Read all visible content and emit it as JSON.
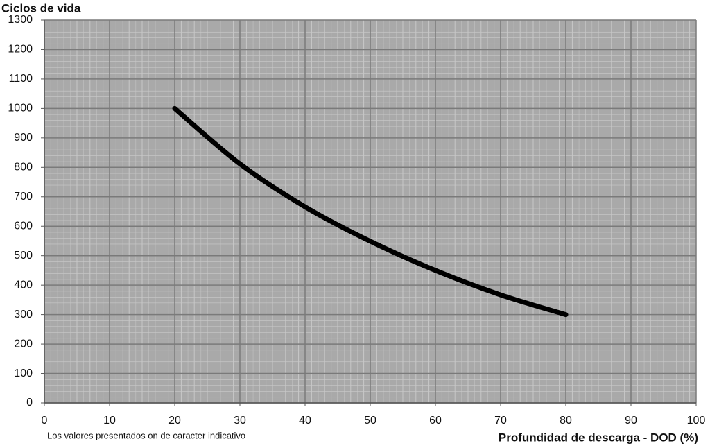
{
  "chart_data": {
    "type": "line",
    "y_label": "Ciclos de vida",
    "x_label": "Profundidad de descarga - DOD (%)",
    "annotation": "Los valores presentados on de caracter indicativo",
    "x": [
      20,
      30,
      40,
      50,
      60,
      70,
      80
    ],
    "series": [
      {
        "color": "#000000",
        "values": [
          1000,
          812,
          666,
          549,
          450,
          367,
          300
        ]
      }
    ],
    "xlim": [
      0,
      100
    ],
    "xticks": [
      0,
      10,
      20,
      30,
      40,
      50,
      60,
      70,
      80,
      90,
      100
    ],
    "ylim": [
      0,
      1300
    ],
    "yticks": [
      0,
      100,
      200,
      300,
      400,
      500,
      600,
      700,
      800,
      900,
      1000,
      1100,
      1200,
      1300
    ],
    "grid": true
  }
}
